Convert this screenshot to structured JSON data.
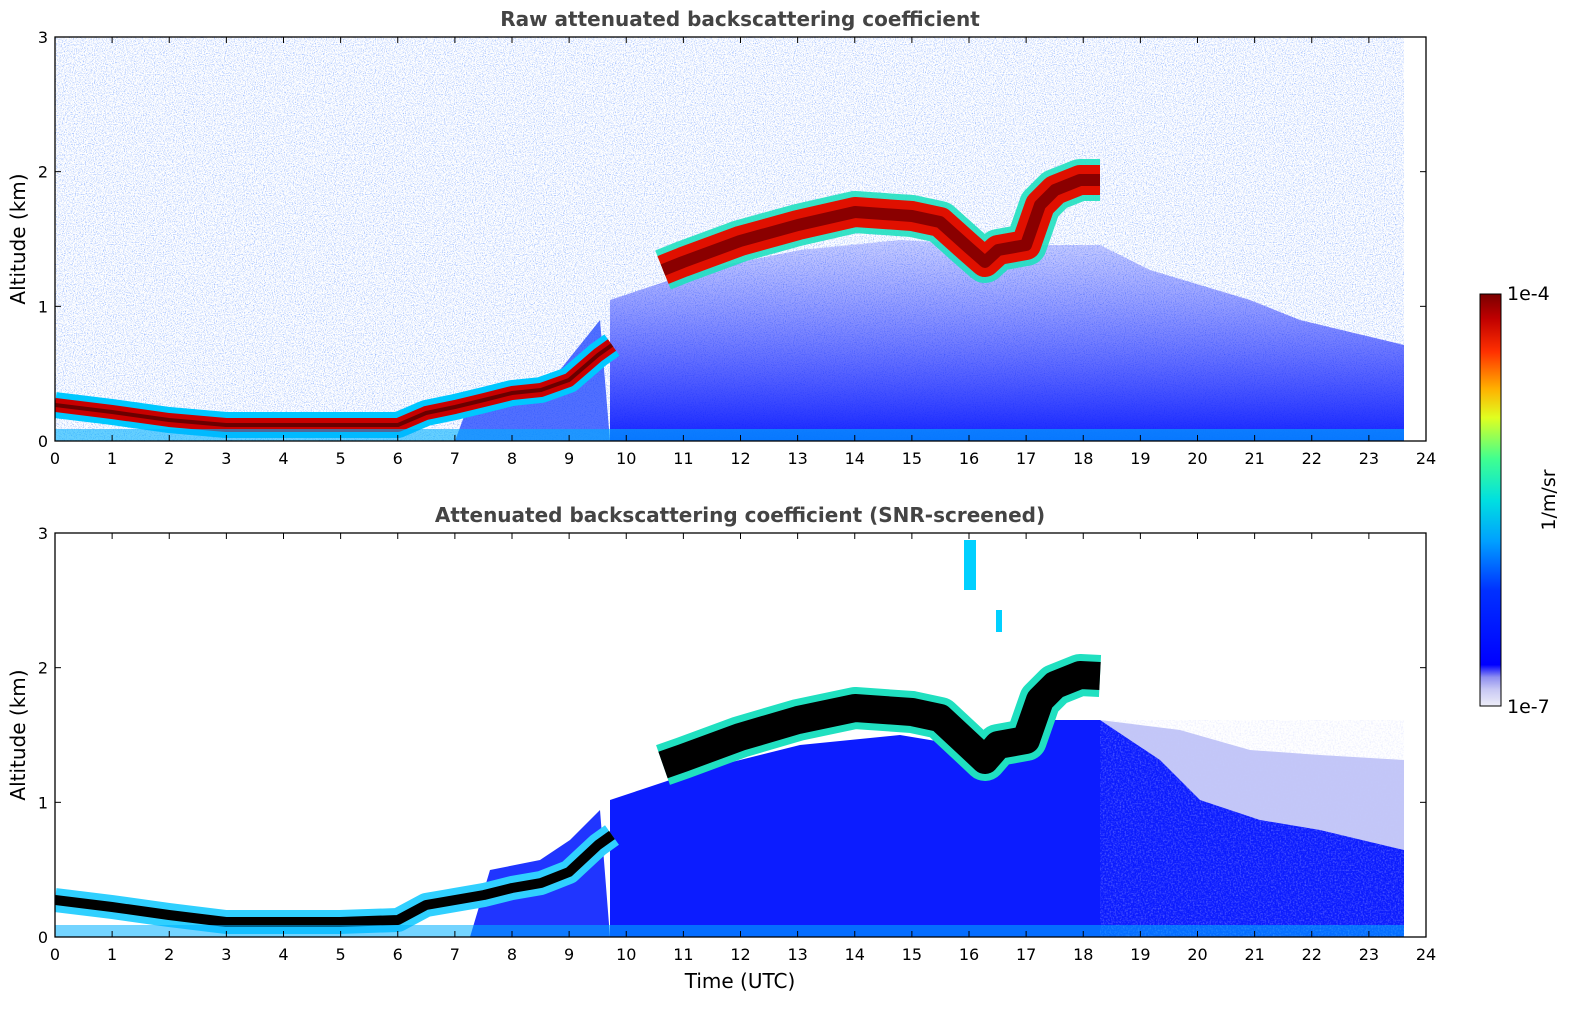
{
  "chart_data": [
    {
      "type": "heatmap",
      "title": "Raw attenuated backscattering coefficient",
      "xlabel": "",
      "ylabel": "Altitude (km)",
      "xlim": [
        0,
        24
      ],
      "ylim": [
        0,
        3
      ],
      "x_ticks": [
        "0",
        "1",
        "2",
        "3",
        "4",
        "5",
        "6",
        "7",
        "8",
        "9",
        "10",
        "11",
        "12",
        "13",
        "14",
        "15",
        "16",
        "17",
        "18",
        "19",
        "20",
        "21",
        "22",
        "23",
        "24"
      ],
      "y_ticks": [
        "0",
        "1",
        "2",
        "3"
      ],
      "data_end_hour": 23.6,
      "layers": [
        {
          "name": "aerosol layer",
          "hours": [
            0,
            1,
            2,
            3,
            4,
            5,
            6,
            6.5,
            7,
            7.5,
            8,
            8.5,
            9,
            9.5,
            9.8
          ],
          "altitude_km": [
            0.25,
            0.2,
            0.15,
            0.12,
            0.12,
            0.12,
            0.12,
            0.2,
            0.25,
            0.3,
            0.35,
            0.38,
            0.45,
            0.6,
            0.7
          ]
        },
        {
          "name": "cloud base",
          "hours": [
            10.7,
            11,
            12,
            13,
            14,
            15,
            15.5,
            16,
            16.3,
            16.5,
            17,
            17.5,
            18,
            18.3
          ],
          "altitude_km": [
            1.25,
            1.3,
            1.45,
            1.55,
            1.6,
            1.6,
            1.55,
            1.35,
            1.25,
            1.4,
            1.4,
            1.75,
            1.9,
            1.95
          ]
        }
      ]
    },
    {
      "type": "heatmap",
      "title": "Attenuated backscattering coefficient (SNR-screened)",
      "xlabel": "Time (UTC)",
      "ylabel": "Altitude (km)",
      "xlim": [
        0,
        24
      ],
      "ylim": [
        0,
        3
      ],
      "x_ticks": [
        "0",
        "1",
        "2",
        "3",
        "4",
        "5",
        "6",
        "7",
        "8",
        "9",
        "10",
        "11",
        "12",
        "13",
        "14",
        "15",
        "16",
        "17",
        "18",
        "19",
        "20",
        "21",
        "22",
        "23",
        "24"
      ],
      "y_ticks": [
        "0",
        "1",
        "2",
        "3"
      ],
      "data_end_hour": 23.6
    }
  ],
  "colorbar": {
    "label": "1/m/sr",
    "min_label": "1e-7",
    "max_label": "1e-4",
    "min": 1e-07,
    "max": 0.0001,
    "scale": "log",
    "colors": [
      "#e4e4f8",
      "#c8c8f4",
      "#9a9af2",
      "#0000ff",
      "#0040ff",
      "#00a0ff",
      "#00e0e0",
      "#40ff90",
      "#e0ff20",
      "#ffc000",
      "#ff5000",
      "#d00000",
      "#7a0000"
    ]
  }
}
